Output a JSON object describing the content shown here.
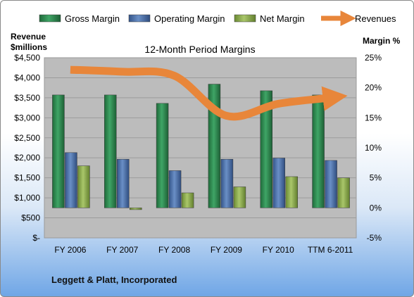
{
  "company": "Leggett & Platt, Incorporated",
  "colors": {
    "gross": "#2e8b4f",
    "operating": "#4a6fa8",
    "net": "#8cac4e",
    "revenues": "#e8863a",
    "plot_bg": "#bcbcbc"
  },
  "chart_data": {
    "type": "bar",
    "title": "12-Month Period Margins",
    "ylabel_left_line1": "Revenue",
    "ylabel_left_line2": "$millions",
    "ylabel_right": "Margin %",
    "categories": [
      "FY 2006",
      "FY 2007",
      "FY 2008",
      "FY 2009",
      "FY 2010",
      "TTM 6-2011"
    ],
    "left_axis": {
      "ticks": [
        0,
        500,
        1000,
        1500,
        2000,
        2500,
        3000,
        3500,
        4000,
        4500
      ],
      "tick_labels": [
        "$-",
        "$500",
        "$1,000",
        "$1,500",
        "$2,000",
        "$2,500",
        "$3,000",
        "$3,500",
        "$4,000",
        "$4,500"
      ],
      "ylim": [
        0,
        4500
      ]
    },
    "right_axis": {
      "ticks": [
        -5,
        0,
        5,
        10,
        15,
        20,
        25
      ],
      "tick_labels": [
        "-5%",
        "0%",
        "5%",
        "10%",
        "15%",
        "20%",
        "25%"
      ],
      "ylim": [
        -5,
        25
      ]
    },
    "legend_position": "top",
    "series": [
      {
        "name": "Gross Margin",
        "axis": "right",
        "color_key": "gross",
        "values": [
          18.8,
          18.8,
          17.4,
          20.6,
          19.5,
          18.8
        ]
      },
      {
        "name": "Operating Margin",
        "axis": "right",
        "color_key": "operating",
        "values": [
          9.2,
          8.1,
          6.2,
          8.1,
          8.3,
          7.9
        ]
      },
      {
        "name": "Net Margin",
        "axis": "right",
        "color_key": "net",
        "values": [
          7.0,
          -0.3,
          2.5,
          3.5,
          5.2,
          5.0
        ]
      },
      {
        "name": "Revenues",
        "axis": "left",
        "color_key": "revenues",
        "type": "line",
        "values": [
          4200,
          4150,
          4050,
          3050,
          3350,
          3500
        ]
      }
    ]
  }
}
